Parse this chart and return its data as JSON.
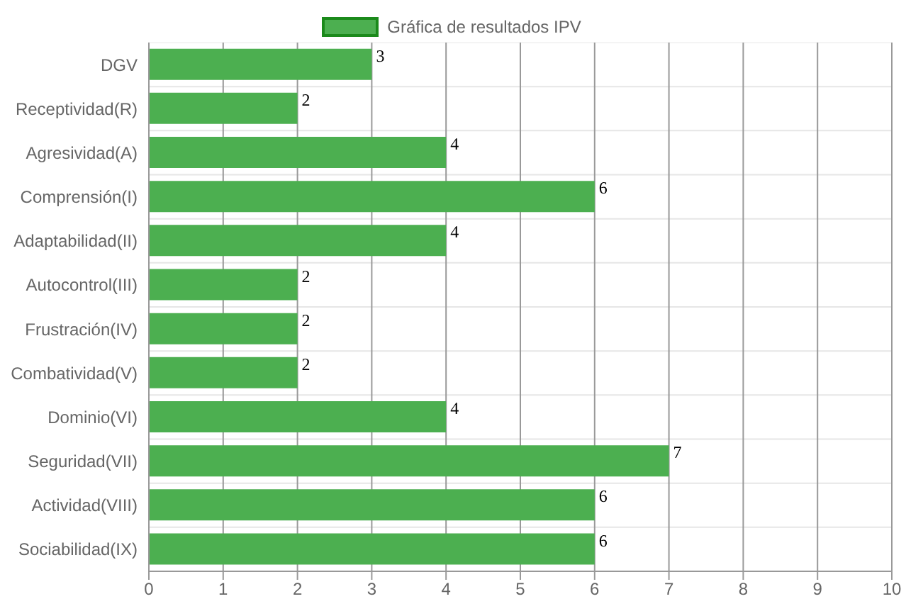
{
  "chart_data": {
    "type": "bar",
    "orientation": "horizontal",
    "categories": [
      "DGV",
      "Receptividad(R)",
      "Agresividad(A)",
      "Comprensión(I)",
      "Adaptabilidad(II)",
      "Autocontrol(III)",
      "Frustración(IV)",
      "Combatividad(V)",
      "Dominio(VI)",
      "Seguridad(VII)",
      "Actividad(VIII)",
      "Sociabilidad(IX)"
    ],
    "series": [
      {
        "name": "Gráfica de resultados IPV",
        "color": "#4caf50",
        "values": [
          3,
          2,
          4,
          6,
          4,
          2,
          2,
          2,
          4,
          7,
          6,
          6
        ]
      }
    ],
    "xlim": [
      0,
      10
    ],
    "xticks": [
      0,
      1,
      2,
      3,
      4,
      5,
      6,
      7,
      8,
      9,
      10
    ],
    "grid": true,
    "legend": "top",
    "data_labels": true
  }
}
